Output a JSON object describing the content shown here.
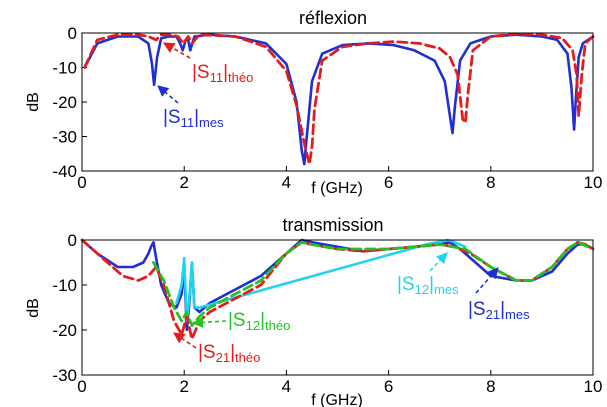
{
  "chart_data": [
    {
      "type": "line",
      "title": "réflexion",
      "xlabel": "f (GHz)",
      "ylabel": "dB",
      "xlim": [
        0,
        10
      ],
      "ylim": [
        -40,
        0
      ],
      "xticks": [
        0,
        2,
        4,
        6,
        8,
        10
      ],
      "yticks": [
        0,
        -10,
        -20,
        -30,
        -40
      ],
      "grid": false,
      "series": [
        {
          "name": "|S11|mes",
          "color": "#1f2fd1",
          "style": "solid",
          "x": [
            0.05,
            0.3,
            0.7,
            1.1,
            1.3,
            1.37,
            1.41,
            1.47,
            1.55,
            1.7,
            1.85,
            1.92,
            1.97,
            2.03,
            2.07,
            2.12,
            2.2,
            2.5,
            3.0,
            3.6,
            4.0,
            4.2,
            4.3,
            4.35,
            4.4,
            4.5,
            4.7,
            5.1,
            5.6,
            6.1,
            6.5,
            6.9,
            7.1,
            7.2,
            7.25,
            7.3,
            7.4,
            7.6,
            8.0,
            8.5,
            9.0,
            9.3,
            9.5,
            9.58,
            9.63,
            9.67,
            9.72,
            9.8,
            10.0
          ],
          "y": [
            -10,
            -3,
            -1,
            -1,
            -3,
            -9,
            -15,
            -7,
            -1.5,
            -1,
            -1,
            -3,
            -5,
            -2,
            -1.5,
            -5,
            -1,
            -0.5,
            -1,
            -3,
            -9,
            -20,
            -34,
            -38,
            -30,
            -14,
            -6,
            -3.5,
            -3,
            -3.5,
            -5,
            -8,
            -14,
            -24,
            -29,
            -21,
            -8,
            -3,
            -1,
            -0.5,
            -1,
            -2,
            -6,
            -16,
            -28,
            -18,
            -7,
            -3,
            -1
          ]
        },
        {
          "name": "|S11|théo",
          "color": "#e51c1c",
          "style": "dashed",
          "x": [
            0.05,
            0.3,
            0.7,
            1.1,
            1.3,
            1.45,
            1.55,
            1.7,
            1.88,
            1.98,
            2.08,
            2.15,
            2.3,
            3.0,
            3.6,
            4.0,
            4.2,
            4.35,
            4.45,
            4.5,
            4.55,
            4.7,
            5.1,
            5.6,
            6.1,
            6.6,
            7.0,
            7.2,
            7.35,
            7.45,
            7.5,
            7.55,
            7.65,
            8.0,
            8.5,
            9.0,
            9.4,
            9.6,
            9.68,
            9.72,
            9.78,
            9.85,
            10.0
          ],
          "y": [
            -10,
            -2,
            -0.5,
            -0.5,
            -1,
            -2,
            -0.5,
            -0.5,
            -1,
            -3,
            -1,
            -3,
            -0.5,
            -1,
            -4,
            -11,
            -21,
            -32,
            -38,
            -33,
            -22,
            -8,
            -4,
            -3,
            -2.5,
            -3,
            -4.5,
            -7,
            -12,
            -25,
            -26,
            -18,
            -5,
            -1,
            -0.3,
            -0.5,
            -1.5,
            -5,
            -12,
            -24,
            -12,
            -3,
            -1
          ]
        }
      ],
      "annotations": [
        {
          "label": "|S11|théo",
          "base": "|S",
          "sub_a": "11",
          "mid": "|",
          "sub_b": "théo",
          "color": "#e51c1c"
        },
        {
          "label": "|S11|mes",
          "base": "|S",
          "sub_a": "11",
          "mid": "|",
          "sub_b": "mes",
          "color": "#1f2fd1"
        }
      ]
    },
    {
      "type": "line",
      "title": "transmission",
      "xlabel": "f (GHz)",
      "ylabel": "dB",
      "xlim": [
        0,
        10
      ],
      "ylim": [
        -30,
        0
      ],
      "xticks": [
        0,
        2,
        4,
        6,
        8,
        10
      ],
      "yticks": [
        0,
        -10,
        -20,
        -30
      ],
      "grid": false,
      "series": [
        {
          "name": "|S21|mes",
          "color": "#1f2fd1",
          "style": "solid",
          "x": [
            0.0,
            0.3,
            0.7,
            1.0,
            1.2,
            1.3,
            1.35,
            1.4,
            1.45,
            1.55,
            1.7,
            1.85,
            1.95,
            2.0,
            2.05,
            2.1,
            2.15,
            2.2,
            2.3,
            2.5,
            3.0,
            3.5,
            4.0,
            4.3,
            4.5,
            5.0,
            5.5,
            6.0,
            6.5,
            7.0,
            7.2,
            7.4,
            7.7,
            8.0,
            8.5,
            8.8,
            9.2,
            9.5,
            9.7,
            9.85,
            10.0
          ],
          "y": [
            0,
            -3,
            -6,
            -6,
            -5,
            -3,
            -1.5,
            -0.5,
            -4,
            -10,
            -14,
            -15,
            -12,
            -6,
            -20,
            -14,
            -5,
            -15,
            -16,
            -14,
            -11,
            -8,
            -3,
            0,
            -0.5,
            -1.5,
            -2.5,
            -2,
            -1.5,
            -1,
            -0.5,
            -2,
            -5,
            -8,
            -9,
            -9,
            -7,
            -3,
            -1,
            -1,
            -2
          ]
        },
        {
          "name": "|S12|mes",
          "color": "#22d3ee",
          "style": "solid",
          "x": [
            1.85,
            1.95,
            2.0,
            2.05,
            2.1,
            2.15,
            2.2,
            2.3,
            6.8,
            7.0,
            7.15,
            7.25,
            7.35,
            7.5
          ],
          "y": [
            -14,
            -10,
            -4,
            -18,
            -13,
            -5,
            -15,
            -15,
            -0.8,
            -0.4,
            0,
            -0.3,
            -0.8,
            -1.5
          ]
        },
        {
          "name": "|S21|théo",
          "color": "#e51c1c",
          "style": "dashed",
          "x": [
            0.0,
            0.4,
            0.8,
            1.1,
            1.3,
            1.45,
            1.6,
            1.8,
            1.95,
            2.05,
            2.15,
            2.3,
            2.5,
            3.0,
            3.5,
            4.0,
            4.3,
            4.5,
            5.0,
            5.5,
            6.0,
            6.5,
            7.0,
            7.3,
            7.6,
            8.0,
            8.5,
            8.8,
            9.2,
            9.5,
            9.7,
            9.85,
            10.0
          ],
          "y": [
            0,
            -4,
            -8,
            -9,
            -8,
            -6,
            -10,
            -18,
            -21,
            -17,
            -22,
            -18,
            -16,
            -13,
            -10,
            -3,
            -0.5,
            -1,
            -2,
            -2.5,
            -2,
            -1.5,
            -1,
            -1.5,
            -3,
            -6,
            -9,
            -9,
            -6,
            -2,
            -0.5,
            -1,
            -2
          ]
        },
        {
          "name": "|S12|théo",
          "color": "#22c322",
          "style": "dashed",
          "x": [
            1.4,
            1.6,
            1.8,
            1.95,
            2.05,
            2.15,
            2.3,
            2.5,
            3.0,
            3.5,
            4.0,
            4.3,
            4.5,
            5.0,
            6.0,
            7.0,
            7.5,
            8.0,
            8.5,
            8.8,
            9.2,
            9.5,
            9.7,
            10.0
          ],
          "y": [
            -5,
            -9,
            -15,
            -18,
            -16,
            -19,
            -17,
            -15,
            -12,
            -9,
            -3,
            -0.5,
            -1,
            -2,
            -2,
            -1,
            -2,
            -6,
            -9,
            -9,
            -6,
            -2,
            -0.5,
            -2
          ]
        }
      ],
      "annotations": [
        {
          "label": "|S12|théo",
          "base": "|S",
          "sub_a": "12",
          "mid": "|",
          "sub_b": "théo",
          "color": "#22c322"
        },
        {
          "label": "|S21|théo",
          "base": "|S",
          "sub_a": "21",
          "mid": "|",
          "sub_b": "théo",
          "color": "#e51c1c"
        },
        {
          "label": "|S12|mes",
          "base": "|S",
          "sub_a": "12",
          "mid": "|",
          "sub_b": "mes",
          "color": "#22d3ee"
        },
        {
          "label": "|S21|mes",
          "base": "|S",
          "sub_a": "21",
          "mid": "|",
          "sub_b": "mes",
          "color": "#1f2fd1"
        }
      ]
    }
  ]
}
